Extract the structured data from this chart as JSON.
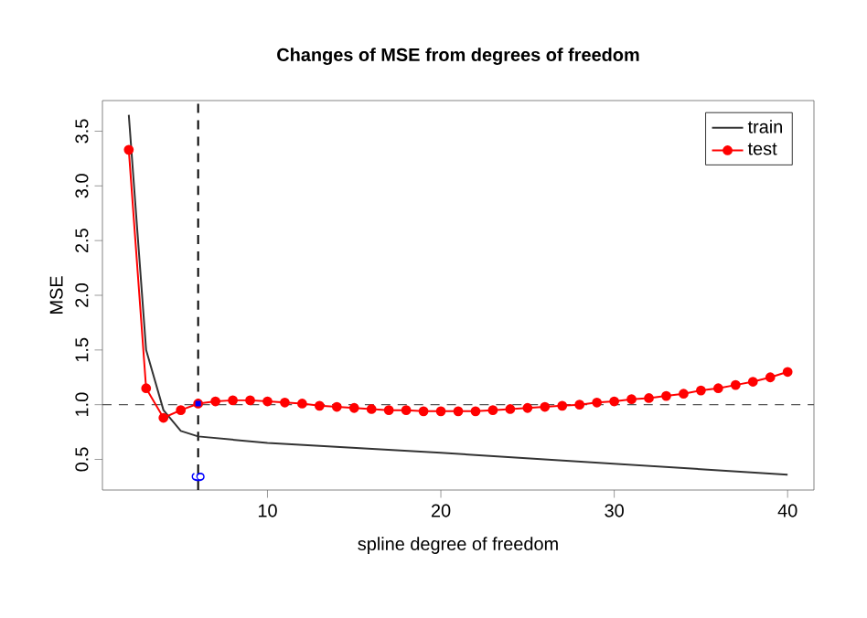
{
  "chart_data": {
    "type": "line",
    "title": "Changes of MSE from degrees of freedom",
    "xlabel": "spline degree of freedom",
    "ylabel": "MSE",
    "xlim": [
      0.48,
      41.52
    ],
    "ylim": [
      0.22,
      3.78
    ],
    "xticks": [
      10,
      20,
      30,
      40
    ],
    "yticks": [
      0.5,
      {
        "value": 1,
        "label": "1.0"
      },
      1.5,
      {
        "value": 2,
        "label": "2.0"
      },
      2.5,
      {
        "value": 3,
        "label": "3.0"
      },
      3.5
    ],
    "series": [
      {
        "name": "train",
        "color": "#333333",
        "marker": "none",
        "x": [
          2,
          3,
          4,
          5,
          6,
          10,
          20,
          30,
          40
        ],
        "values": [
          3.65,
          1.5,
          0.95,
          0.76,
          0.71,
          0.65,
          0.56,
          0.46,
          0.36
        ]
      },
      {
        "name": "test",
        "color": "#ff0000",
        "marker": "circle",
        "x": [
          2,
          3,
          4,
          5,
          6,
          7,
          8,
          9,
          10,
          11,
          12,
          13,
          14,
          15,
          16,
          17,
          18,
          19,
          20,
          21,
          22,
          23,
          24,
          25,
          26,
          27,
          28,
          29,
          30,
          31,
          32,
          33,
          34,
          35,
          36,
          37,
          38,
          39,
          40
        ],
        "values": [
          3.33,
          1.15,
          0.88,
          0.95,
          1.01,
          1.03,
          1.04,
          1.04,
          1.03,
          1.02,
          1.01,
          0.99,
          0.98,
          0.97,
          0.96,
          0.95,
          0.95,
          0.94,
          0.94,
          0.94,
          0.94,
          0.95,
          0.96,
          0.97,
          0.98,
          0.99,
          1.0,
          1.02,
          1.03,
          1.05,
          1.06,
          1.08,
          1.1,
          1.13,
          1.15,
          1.18,
          1.21,
          1.25,
          1.3
        ]
      },
      {
        "type": "scatter",
        "color": "#0000ff",
        "marker": "square",
        "x": [
          6
        ],
        "values": [
          1.01
        ]
      }
    ],
    "ref_lines": [
      {
        "axis": "x",
        "value": 6,
        "color": "#000000",
        "line_style": "dashed"
      },
      {
        "axis": "y",
        "value": 1,
        "color": "#555555",
        "line_style": "dashed"
      }
    ],
    "annotations": [
      {
        "text": "6",
        "x": 6,
        "y": 0.34
      }
    ],
    "legend": "top right",
    "grid": false
  }
}
